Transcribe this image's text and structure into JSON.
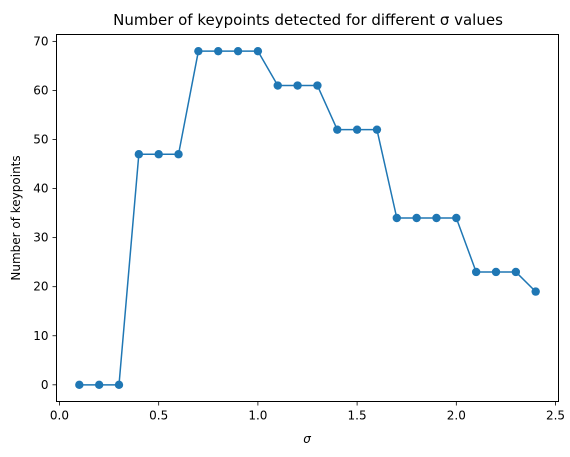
{
  "chart_data": {
    "type": "line",
    "title": "Number of keypoints detected for different σ values",
    "xlabel": "σ",
    "ylabel": "Number of keypoints",
    "xlim": [
      -0.015,
      2.515
    ],
    "ylim": [
      -3.4,
      71.4
    ],
    "x_ticks": [
      0.0,
      0.5,
      1.0,
      1.5,
      2.0,
      2.5
    ],
    "x_tick_labels": [
      "0.0",
      "0.5",
      "1.0",
      "1.5",
      "2.0",
      "2.5"
    ],
    "y_ticks": [
      0,
      10,
      20,
      30,
      40,
      50,
      60,
      70
    ],
    "y_tick_labels": [
      "0",
      "10",
      "20",
      "30",
      "40",
      "50",
      "60",
      "70"
    ],
    "grid": false,
    "series": [
      {
        "color": "#1f77b4",
        "marker": "circle",
        "x": [
          0.1,
          0.2,
          0.3,
          0.4,
          0.5,
          0.6,
          0.7,
          0.8,
          0.9,
          1.0,
          1.1,
          1.2,
          1.3,
          1.4,
          1.5,
          1.6,
          1.7,
          1.8,
          1.9,
          2.0,
          2.1,
          2.2,
          2.3,
          2.4
        ],
        "y": [
          0,
          0,
          0,
          47,
          47,
          47,
          68,
          68,
          68,
          68,
          61,
          61,
          61,
          52,
          52,
          52,
          34,
          34,
          34,
          34,
          23,
          23,
          23,
          19
        ]
      }
    ]
  }
}
